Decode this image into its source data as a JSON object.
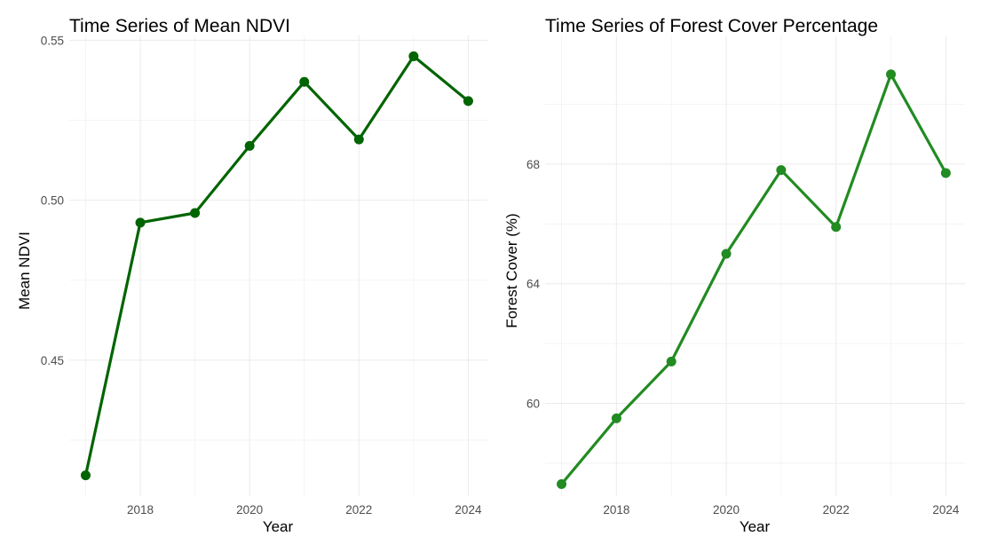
{
  "chart_data": [
    {
      "type": "line",
      "title": "Time Series of Mean NDVI",
      "xlabel": "Year",
      "ylabel": "Mean NDVI",
      "x": [
        2017,
        2018,
        2019,
        2020,
        2021,
        2022,
        2023,
        2024
      ],
      "values": [
        0.414,
        0.493,
        0.496,
        0.517,
        0.537,
        0.519,
        0.545,
        0.531
      ],
      "xticks": [
        2018,
        2020,
        2022,
        2024
      ],
      "xtick_labels": [
        "2018",
        "2020",
        "2022",
        "2024"
      ],
      "yticks": [
        0.45,
        0.5,
        0.55
      ],
      "ytick_labels": [
        "0.45",
        "0.50",
        "0.55"
      ],
      "xlim": [
        2016.7,
        2024.35
      ],
      "ylim": [
        0.4075,
        0.5515
      ],
      "grid": true,
      "color": "#006400"
    },
    {
      "type": "line",
      "title": "Time Series of Forest Cover Percentage",
      "xlabel": "Year",
      "ylabel": "Forest Cover (%)",
      "x": [
        2017,
        2018,
        2019,
        2020,
        2021,
        2022,
        2023,
        2024
      ],
      "values": [
        57.3,
        59.5,
        61.4,
        65.0,
        67.8,
        65.9,
        71.0,
        67.7
      ],
      "xticks": [
        2018,
        2020,
        2022,
        2024
      ],
      "xtick_labels": [
        "2018",
        "2020",
        "2022",
        "2024"
      ],
      "yticks": [
        60,
        64,
        68
      ],
      "ytick_labels": [
        "60",
        "64",
        "68"
      ],
      "xlim": [
        2016.7,
        2024.35
      ],
      "ylim": [
        56.9,
        72.3
      ],
      "grid": true,
      "color": "#228B22"
    }
  ]
}
